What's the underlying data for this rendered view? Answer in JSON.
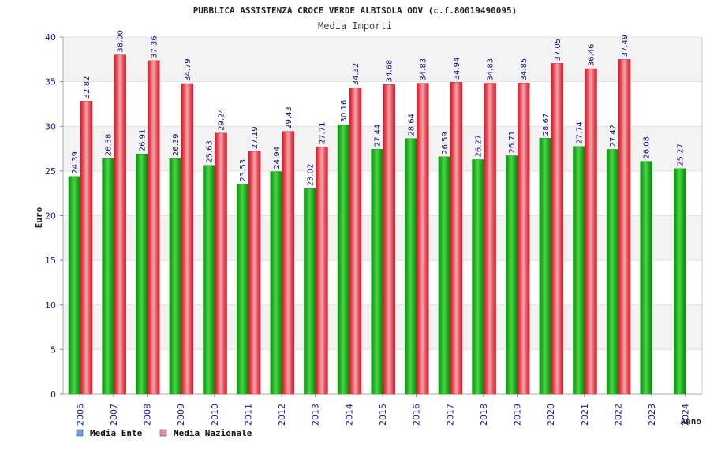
{
  "chart_data": {
    "type": "bar",
    "title": "PUBBLICA ASSISTENZA CROCE VERDE ALBISOLA ODV (c.f.80019490095)",
    "subtitle": "Media Importi",
    "xlabel": "Anno",
    "ylabel": "Euro",
    "ylim": [
      0,
      40
    ],
    "yticks": [
      "0",
      "5",
      "10",
      "15",
      "20",
      "25",
      "30",
      "35",
      "40"
    ],
    "grid": "horizontal bands",
    "legend_position": "bottom-left",
    "categories": [
      "2006",
      "2007",
      "2008",
      "2009",
      "2010",
      "2011",
      "2012",
      "2013",
      "2014",
      "2015",
      "2016",
      "2017",
      "2018",
      "2019",
      "2020",
      "2021",
      "2022",
      "2023",
      "2024"
    ],
    "series": [
      {
        "name": "Media Ente",
        "color": "#10a010",
        "legend_color": "#6aa0f0",
        "values": [
          24.39,
          26.38,
          26.91,
          26.39,
          25.63,
          23.53,
          24.94,
          23.02,
          30.16,
          27.44,
          28.64,
          26.59,
          26.27,
          26.71,
          28.67,
          27.74,
          27.42,
          26.08,
          25.27
        ],
        "labels": [
          "24.39",
          "26.38",
          "26.91",
          "26.39",
          "25.63",
          "23.53",
          "24.94",
          "23.02",
          "30.16",
          "27.44",
          "28.64",
          "26.59",
          "26.27",
          "26.71",
          "28.67",
          "27.74",
          "27.42",
          "26.08",
          "25.27"
        ]
      },
      {
        "name": "Media Nazionale",
        "color": "#e0202a",
        "legend_color": "#e88ab0",
        "values": [
          32.82,
          38.0,
          37.36,
          34.79,
          29.24,
          27.19,
          29.43,
          27.71,
          34.32,
          34.68,
          34.83,
          34.94,
          34.83,
          34.85,
          37.05,
          36.46,
          37.49,
          null,
          null
        ],
        "labels": [
          "32.82",
          "38.00",
          "37.36",
          "34.79",
          "29.24",
          "27.19",
          "29.43",
          "27.71",
          "34.32",
          "34.68",
          "34.83",
          "34.94",
          "34.83",
          "34.85",
          "37.05",
          "36.46",
          "37.49",
          null,
          null
        ]
      }
    ]
  }
}
